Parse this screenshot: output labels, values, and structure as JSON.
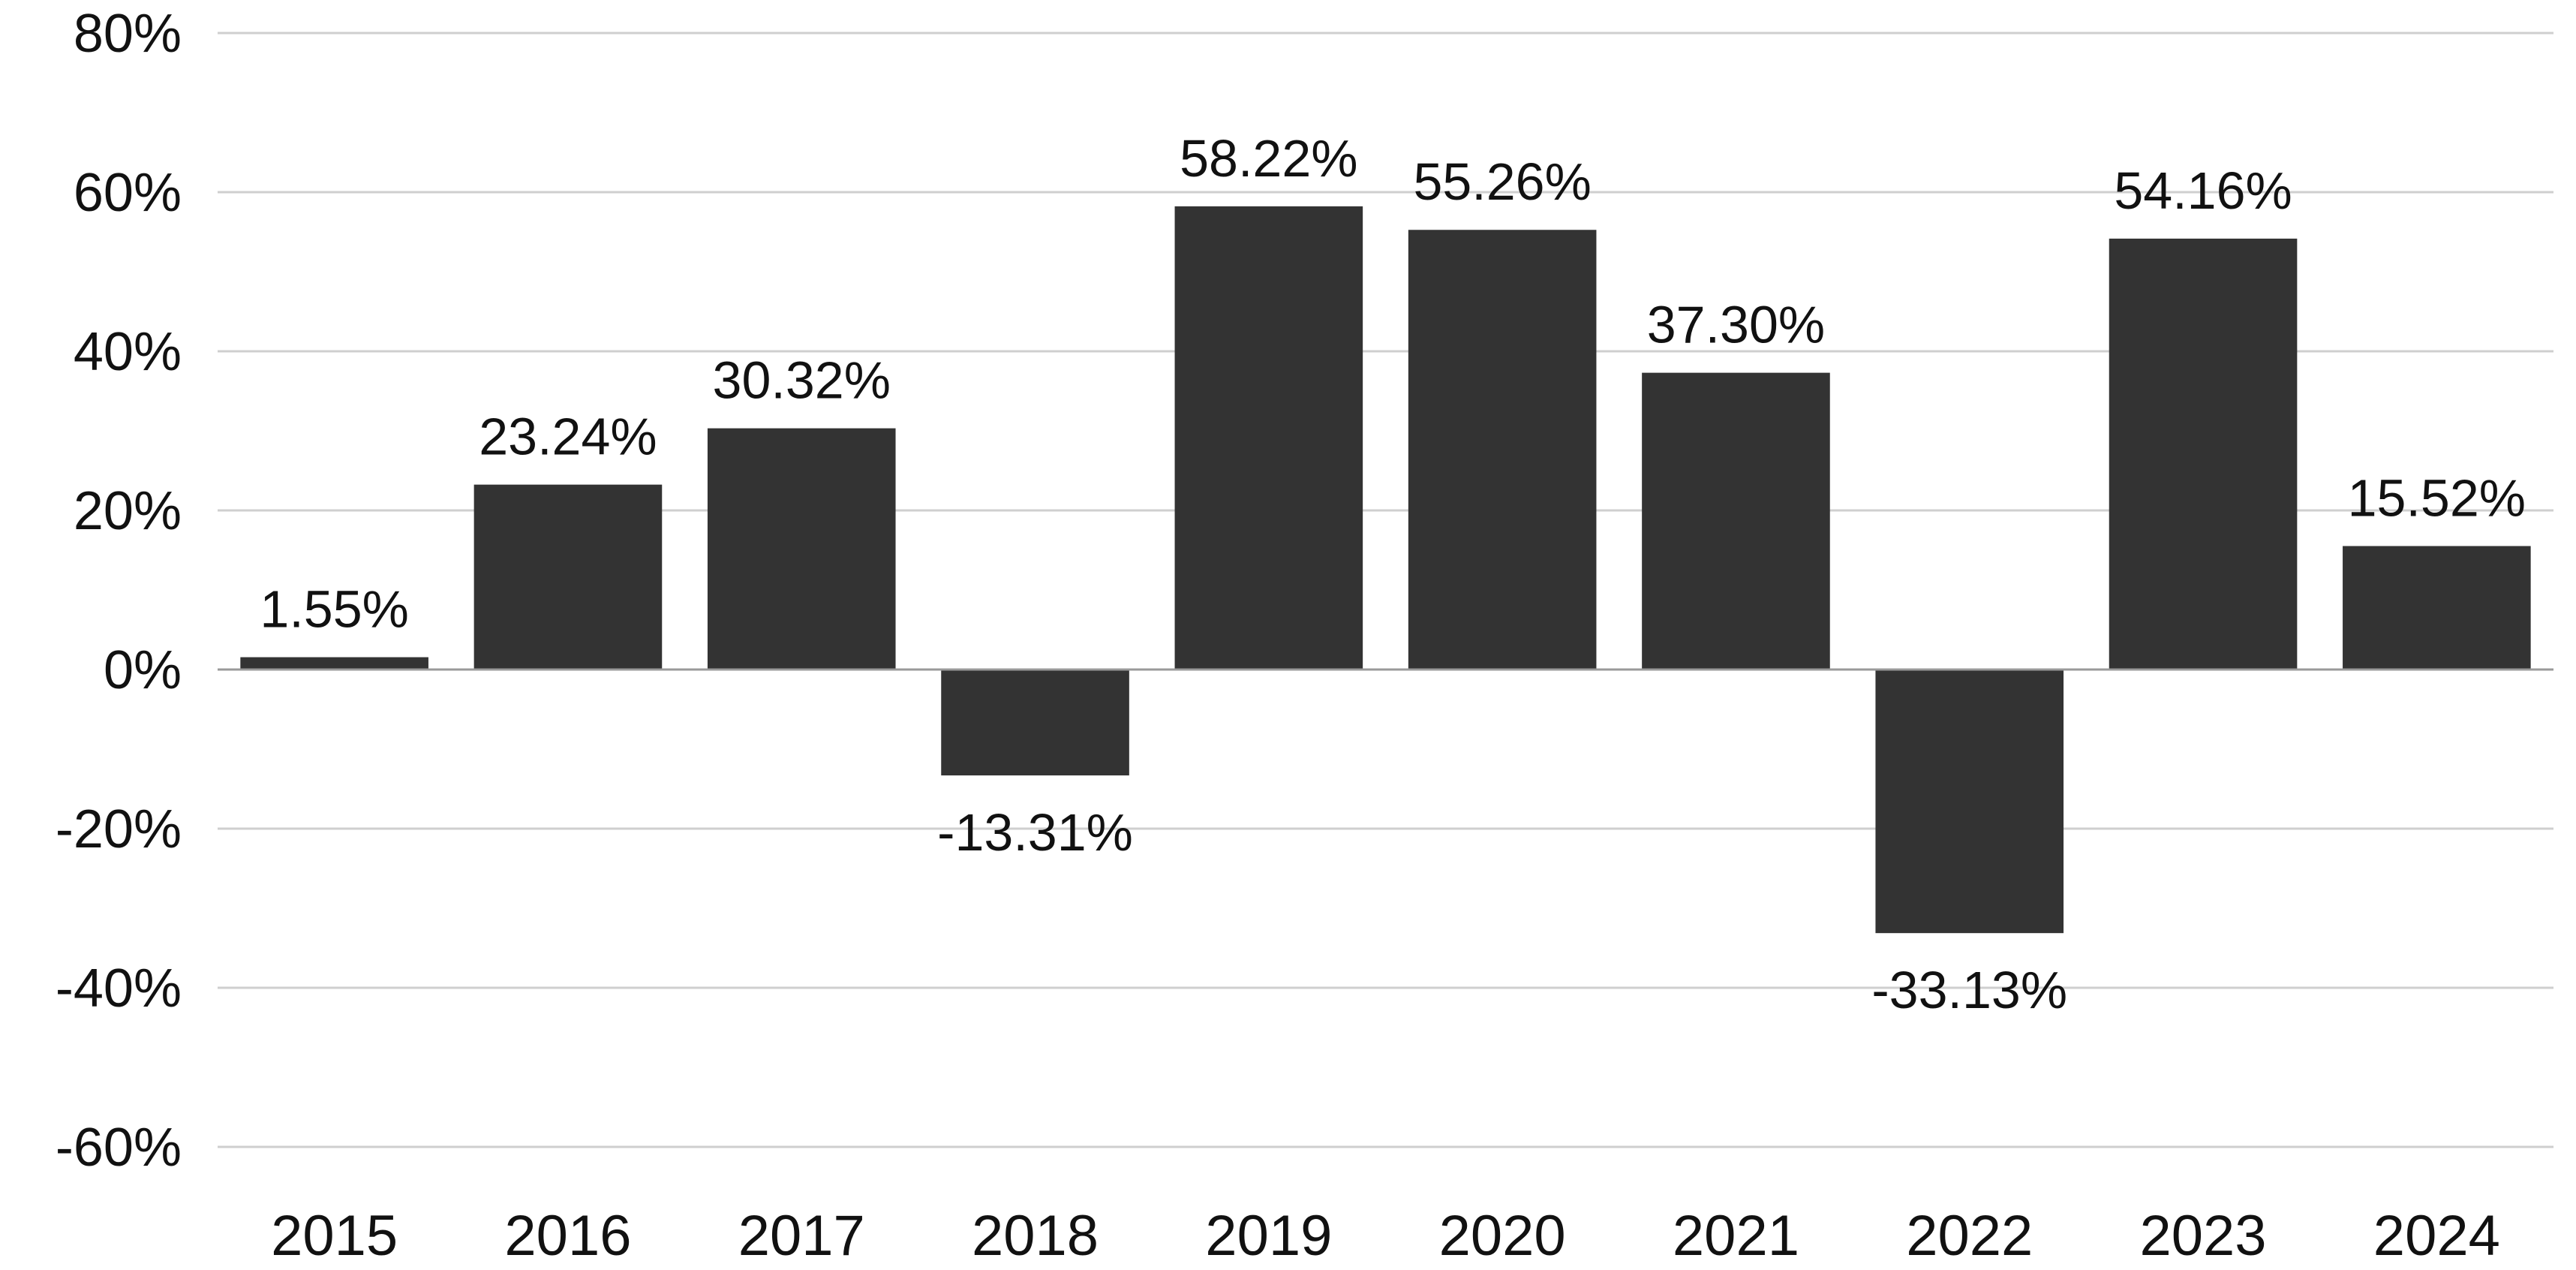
{
  "chart_data": {
    "type": "bar",
    "title": "",
    "xlabel": "",
    "ylabel": "",
    "categories": [
      "2015",
      "2016",
      "2017",
      "2018",
      "2019",
      "2020",
      "2021",
      "2022",
      "2023",
      "2024"
    ],
    "values": [
      1.55,
      23.24,
      30.32,
      -13.31,
      58.22,
      55.26,
      37.3,
      -33.13,
      54.16,
      15.52
    ],
    "data_labels": [
      "1.55%",
      "23.24%",
      "30.32%",
      "-13.31%",
      "58.22%",
      "55.26%",
      "37.30%",
      "-33.13%",
      "54.16%",
      "15.52%"
    ],
    "ylim": [
      -60,
      80
    ],
    "yticks": [
      80,
      60,
      40,
      20,
      0,
      -20,
      -40,
      -60
    ],
    "ytick_labels": [
      "80%",
      "60%",
      "40%",
      "20%",
      "0%",
      "-20%",
      "-40%",
      "-60%"
    ],
    "grid": true,
    "legend": "none",
    "colors": {
      "bar": "#333333",
      "grid": "#cfcfcf",
      "zero_line": "#9a9a9a",
      "text": "#111111"
    }
  }
}
